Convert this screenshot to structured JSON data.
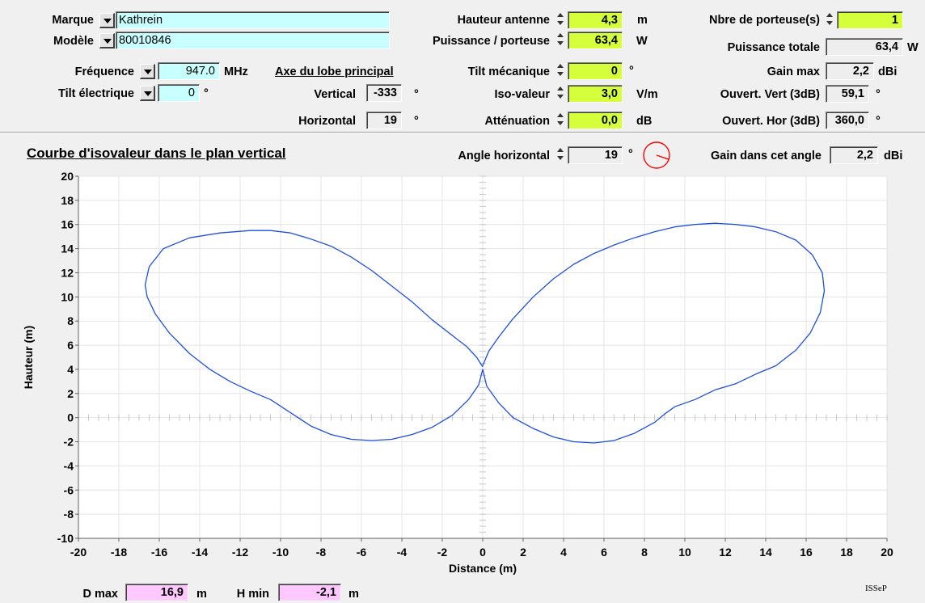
{
  "left": {
    "marque_label": "Marque",
    "marque_value": "Kathrein",
    "modele_label": "Modèle",
    "modele_value": "80010846",
    "frequence_label": "Fréquence",
    "frequence_value": "947.0",
    "frequence_unit": "MHz",
    "tilt_elec_label": "Tilt électrique",
    "tilt_elec_value": "0",
    "tilt_elec_unit": "°"
  },
  "lobe": {
    "title": "Axe du lobe principal",
    "vertical_label": "Vertical",
    "vertical_value": "-333",
    "vertical_unit": "°",
    "horizontal_label": "Horizontal",
    "horizontal_value": "19",
    "horizontal_unit": "°"
  },
  "middle": {
    "hauteur_label": "Hauteur antenne",
    "hauteur_value": "4,3",
    "hauteur_unit": "m",
    "puissance_label": "Puissance / porteuse",
    "puissance_value": "63,4",
    "puissance_unit": "W",
    "tilt_meca_label": "Tilt mécanique",
    "tilt_meca_value": "0",
    "tilt_meca_unit": "°",
    "iso_label": "Iso-valeur",
    "iso_value": "3,0",
    "iso_unit": "V/m",
    "attenuation_label": "Atténuation",
    "attenuation_value": "0,0",
    "attenuation_unit": "dB"
  },
  "right": {
    "porteuses_label": "Nbre de porteuse(s)",
    "porteuses_value": "1",
    "puissance_totale_label": "Puissance totale",
    "puissance_totale_value": "63,4",
    "puissance_totale_unit": "W",
    "gain_max_label": "Gain max",
    "gain_max_value": "2,2",
    "gain_max_unit": "dBi",
    "ouvert_vert_label": "Ouvert. Vert (3dB)",
    "ouvert_vert_value": "59,1",
    "ouvert_vert_unit": "°",
    "ouvert_hor_label": "Ouvert. Hor (3dB)",
    "ouvert_hor_value": "360,0",
    "ouvert_hor_unit": "°"
  },
  "plot_header": {
    "title": "Courbe d'isovaleur dans le plan vertical",
    "angle_label": "Angle horizontal",
    "angle_value": "19",
    "angle_unit": "°",
    "angle_deg": 19,
    "gain_label": "Gain dans cet angle",
    "gain_value": "2,2",
    "gain_unit": "dBi"
  },
  "bottom": {
    "dmax_label": "D max",
    "dmax_value": "16,9",
    "dmax_unit": "m",
    "hmin_label": "H min",
    "hmin_value": "-2,1",
    "hmin_unit": "m",
    "credit": "ISSeP"
  },
  "colors": {
    "curve": "#1f4fe0",
    "lime": "#d4ff3a",
    "cyan": "#c8ffff",
    "pink": "#ffc8ff",
    "indicator": "#ff0000"
  },
  "chart_data": {
    "type": "line",
    "xlabel": "Distance (m)",
    "ylabel": "Hauteur (m)",
    "xlim": [
      -20,
      20
    ],
    "ylim": [
      -10,
      20
    ],
    "xticks": [
      -20,
      -18,
      -16,
      -14,
      -12,
      -10,
      -8,
      -6,
      -4,
      -2,
      0,
      2,
      4,
      6,
      8,
      10,
      12,
      14,
      16,
      18,
      20
    ],
    "yticks": [
      -10,
      -8,
      -6,
      -4,
      -2,
      0,
      2,
      4,
      6,
      8,
      10,
      12,
      14,
      16,
      18,
      20
    ],
    "grid": true,
    "series": [
      {
        "x": [
          0,
          -0.2,
          -0.7,
          -1.5,
          -2.5,
          -3.5,
          -4.5,
          -5.5,
          -6.5,
          -7.5,
          -8.5,
          -9.5,
          -10.5,
          -11.5,
          -12.5,
          -13.5,
          -14.5,
          -15.5,
          -16.2,
          -16.6,
          -16.7,
          -16.5,
          -15.8,
          -14.5,
          -13.0,
          -11.5,
          -10.5,
          -9.5,
          -8.5,
          -7.5,
          -6.5,
          -5.5,
          -4.5,
          -3.5,
          -2.5,
          -1.5,
          -0.8,
          -0.3,
          0
        ],
        "y": [
          4.0,
          2.7,
          1.5,
          0.2,
          -0.8,
          -1.4,
          -1.8,
          -1.9,
          -1.8,
          -1.4,
          -0.7,
          0.4,
          1.5,
          2.2,
          3.0,
          4.0,
          5.3,
          7.0,
          8.6,
          10.0,
          11.0,
          12.5,
          14.0,
          14.9,
          15.3,
          15.5,
          15.5,
          15.3,
          14.8,
          14.2,
          13.3,
          12.2,
          10.9,
          9.6,
          8.1,
          6.8,
          5.9,
          5.0,
          4.2
        ]
      },
      {
        "x": [
          0,
          0.2,
          0.8,
          1.5,
          2.5,
          3.5,
          4.5,
          5.5,
          6.5,
          7.5,
          8.5,
          9.0,
          9.5,
          10.5,
          11.5,
          12.5,
          13.5,
          14.5,
          15.5,
          16.2,
          16.7,
          16.9,
          16.8,
          16.3,
          15.5,
          14.5,
          13.5,
          12.5,
          11.5,
          10.5,
          9.5,
          8.5,
          7.5,
          6.5,
          5.5,
          4.5,
          3.5,
          2.5,
          1.5,
          0.8,
          0.3,
          0
        ],
        "y": [
          4.0,
          2.6,
          1.2,
          0.0,
          -0.9,
          -1.6,
          -2.0,
          -2.1,
          -1.9,
          -1.3,
          -0.4,
          0.3,
          0.9,
          1.5,
          2.3,
          2.8,
          3.6,
          4.3,
          5.6,
          7.0,
          8.7,
          10.5,
          12.0,
          13.5,
          14.7,
          15.4,
          15.8,
          16.0,
          16.1,
          16.0,
          15.8,
          15.4,
          14.9,
          14.3,
          13.6,
          12.7,
          11.5,
          10.0,
          8.2,
          6.7,
          5.5,
          4.3
        ]
      }
    ]
  }
}
